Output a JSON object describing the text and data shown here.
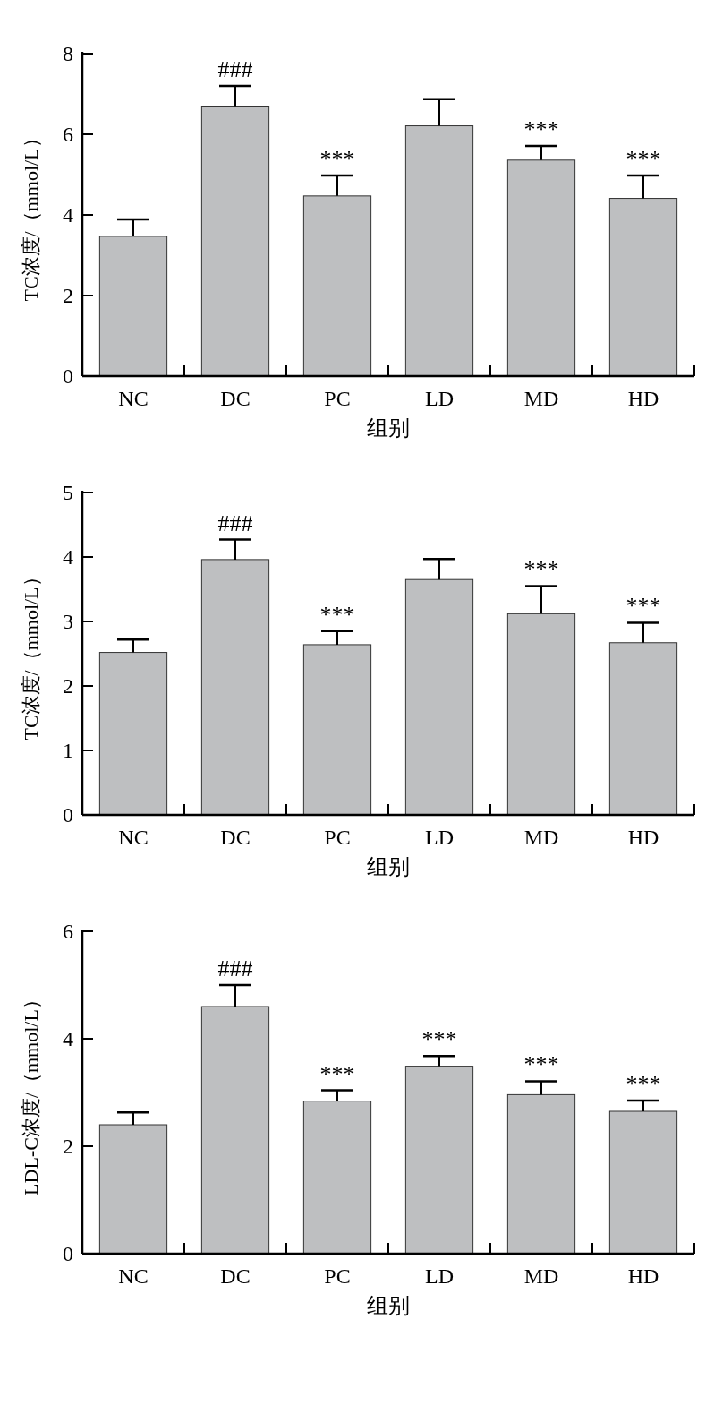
{
  "chart_data": [
    {
      "type": "bar",
      "categories": [
        "NC",
        "DC",
        "PC",
        "LD",
        "MD",
        "HD"
      ],
      "values": [
        3.47,
        6.7,
        4.47,
        6.21,
        5.36,
        4.41
      ],
      "errors": [
        [
          3.47,
          3.89
        ],
        [
          6.7,
          7.2
        ],
        [
          4.47,
          4.98
        ],
        [
          6.21,
          6.87
        ],
        [
          5.36,
          5.71
        ],
        [
          4.41,
          4.98
        ]
      ],
      "color": "#bebfc1",
      "ylim": [
        0,
        8
      ],
      "yticks": [
        0,
        2,
        4,
        6,
        8
      ],
      "xlabel": "组别",
      "ylabel": "TC浓度/（mmol/L）",
      "annotations": [
        {
          "text": "###",
          "x": "DC",
          "y": 7.2
        },
        {
          "text": "***",
          "x": "PC",
          "y": 4.98
        },
        {
          "text": "***",
          "x": "MD",
          "y": 5.71
        },
        {
          "text": "***",
          "x": "HD",
          "y": 4.98
        }
      ]
    },
    {
      "type": "bar",
      "categories": [
        "NC",
        "DC",
        "PC",
        "LD",
        "MD",
        "HD"
      ],
      "values": [
        2.52,
        3.96,
        2.64,
        3.65,
        3.12,
        2.67
      ],
      "errors": [
        [
          2.52,
          2.72
        ],
        [
          3.96,
          4.27
        ],
        [
          2.64,
          2.85
        ],
        [
          3.65,
          3.97
        ],
        [
          3.12,
          3.55
        ],
        [
          2.67,
          2.98
        ]
      ],
      "color": "#bebfc1",
      "ylim": [
        0,
        5
      ],
      "yticks": [
        0,
        1,
        2,
        3,
        4,
        5
      ],
      "xlabel": "组别",
      "ylabel": "TC浓度/（mmol/L）",
      "annotations": [
        {
          "text": "###",
          "x": "DC",
          "y": 4.27
        },
        {
          "text": "***",
          "x": "PC",
          "y": 2.85
        },
        {
          "text": "***",
          "x": "MD",
          "y": 3.55
        },
        {
          "text": "***",
          "x": "HD",
          "y": 2.98
        }
      ]
    },
    {
      "type": "bar",
      "categories": [
        "NC",
        "DC",
        "PC",
        "LD",
        "MD",
        "HD"
      ],
      "values": [
        2.4,
        4.6,
        2.84,
        3.49,
        2.96,
        2.65
      ],
      "errors": [
        [
          2.4,
          2.63
        ],
        [
          4.6,
          5.0
        ],
        [
          2.84,
          3.04
        ],
        [
          3.49,
          3.68
        ],
        [
          2.96,
          3.21
        ],
        [
          2.65,
          2.85
        ]
      ],
      "color": "#bebfc1",
      "ylim": [
        0,
        6
      ],
      "yticks": [
        0,
        2,
        4,
        6
      ],
      "xlabel": "组别",
      "ylabel": "LDL-C浓度/（mmol/L）",
      "annotations": [
        {
          "text": "###",
          "x": "DC",
          "y": 5.0
        },
        {
          "text": "***",
          "x": "PC",
          "y": 3.04
        },
        {
          "text": "***",
          "x": "LD",
          "y": 3.68
        },
        {
          "text": "***",
          "x": "MD",
          "y": 3.21
        },
        {
          "text": "***",
          "x": "HD",
          "y": 2.85
        }
      ]
    }
  ]
}
